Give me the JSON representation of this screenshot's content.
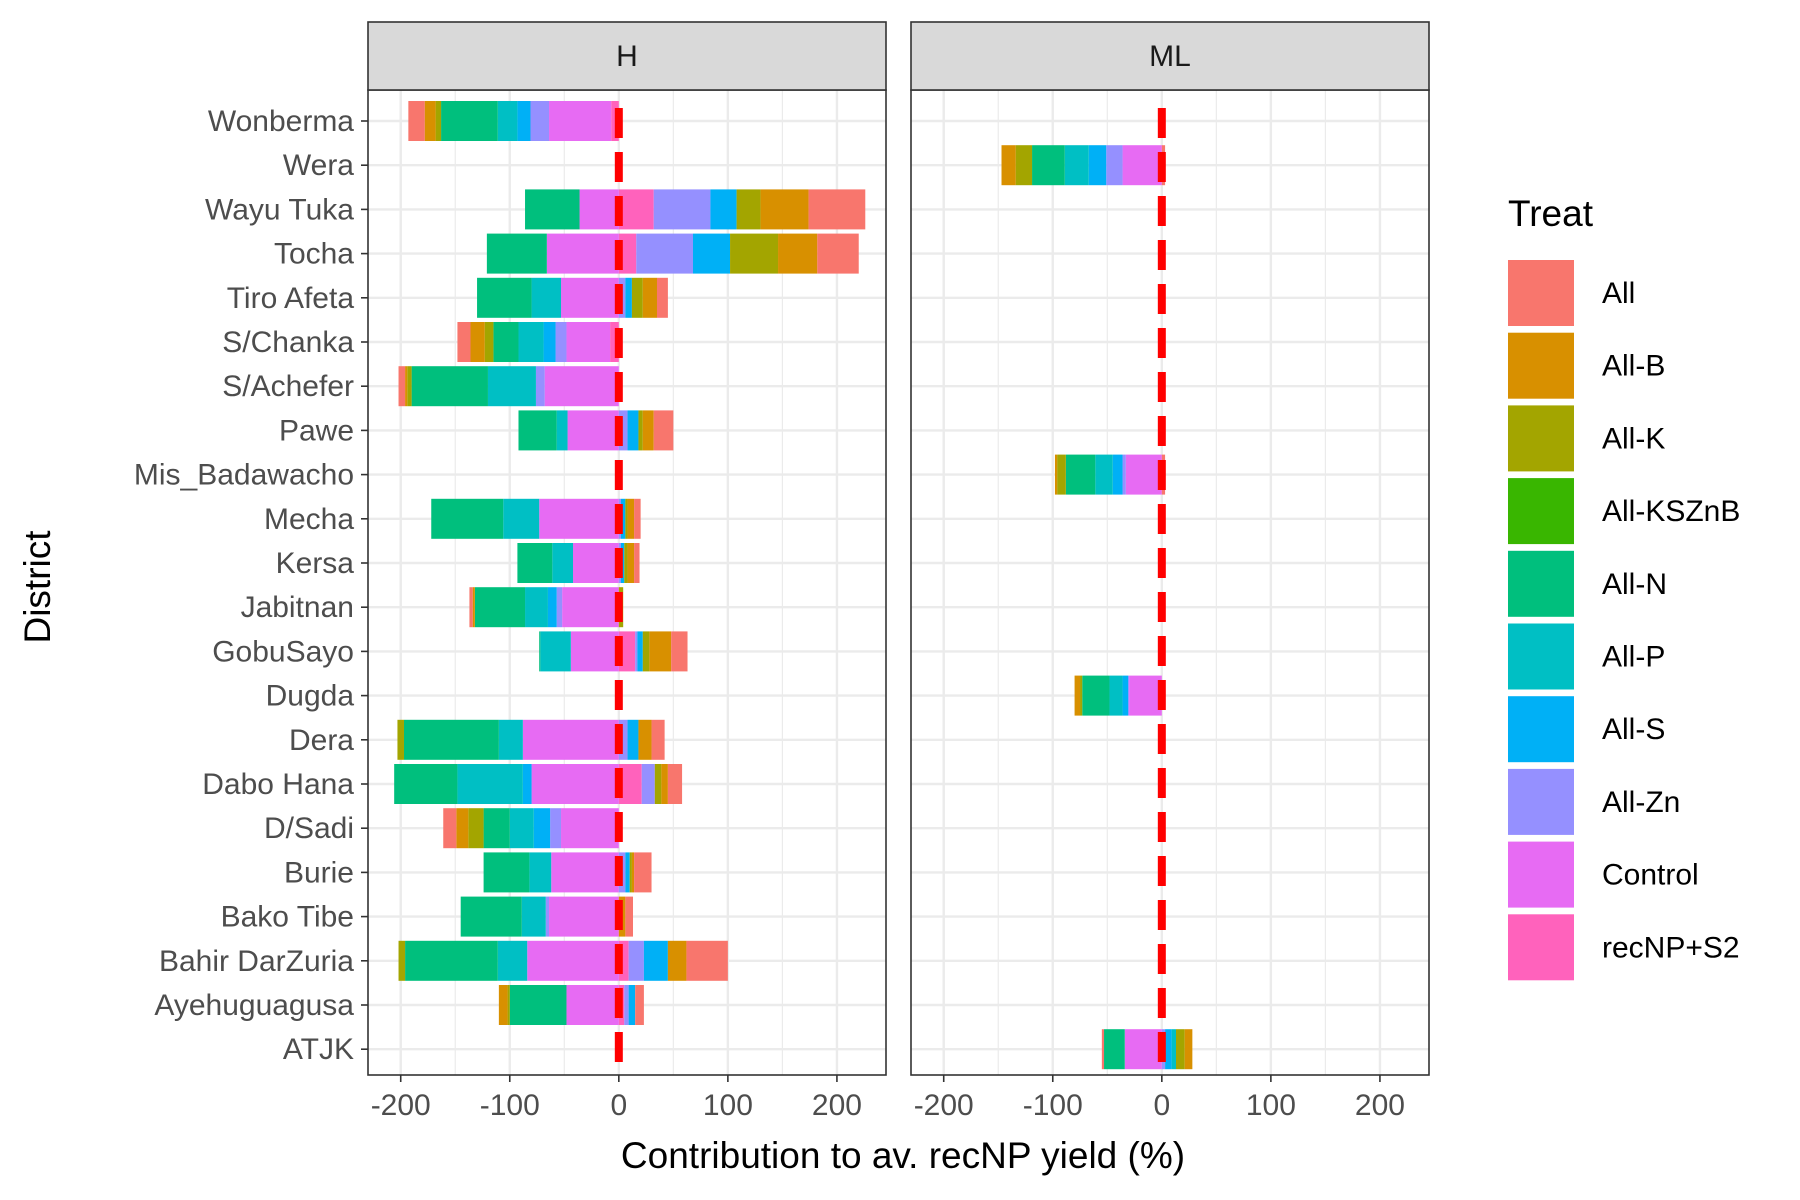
{
  "chart_data": {
    "type": "bar",
    "orientation": "horizontal",
    "stacked": "diverging",
    "xlabel": "Contribution to av. recNP yield (%)",
    "ylabel": "District",
    "xlim": [
      -230,
      245
    ],
    "xticks": [
      -200,
      -100,
      0,
      100,
      200
    ],
    "xtick_labels": [
      "-200",
      "-100",
      "0",
      "100",
      "200"
    ],
    "grid": true,
    "reference_line": {
      "x": 0,
      "style": "dashed",
      "color": "#FF0000"
    },
    "categories": [
      "Wonberma",
      "Wera",
      "Wayu Tuka",
      "Tocha",
      "Tiro Afeta",
      "S/Chanka",
      "S/Achefer",
      "Pawe",
      "Mis_Badawacho",
      "Mecha",
      "Kersa",
      "Jabitnan",
      "GobuSayo",
      "Dugda",
      "Dera",
      "Dabo Hana",
      "D/Sadi",
      "Burie",
      "Bako Tibe",
      "Bahir DarZuria",
      "Ayehuguagusa",
      "ATJK"
    ],
    "legend": {
      "title": "Treat",
      "position": "right",
      "entries": [
        {
          "name": "All",
          "color": "#F8766D"
        },
        {
          "name": "All-B",
          "color": "#D89000"
        },
        {
          "name": "All-K",
          "color": "#A3A500"
        },
        {
          "name": "All-KSZnB",
          "color": "#39B600"
        },
        {
          "name": "All-N",
          "color": "#00BF7D"
        },
        {
          "name": "All-P",
          "color": "#00BFC4"
        },
        {
          "name": "All-S",
          "color": "#00B0F6"
        },
        {
          "name": "All-Zn",
          "color": "#9590FF"
        },
        {
          "name": "Control",
          "color": "#E76BF3"
        },
        {
          "name": "recNP+S2",
          "color": "#FF62BC"
        }
      ]
    },
    "panels": [
      {
        "label": "H",
        "bars": [
          {
            "district": "Wonberma",
            "values": {
              "All": -15,
              "All-B": -10,
              "All-K": -5,
              "All-N": -52,
              "All-P": -18,
              "All-S": -12,
              "All-Zn": -17,
              "Control": -57,
              "recNP+S2": -7
            }
          },
          {
            "district": "Wera",
            "values": {}
          },
          {
            "district": "Wayu Tuka",
            "values": {
              "All": 52,
              "All-B": 44,
              "All-K": 22,
              "All-N": -50,
              "All-P": 0,
              "All-S": 24,
              "All-Zn": 52,
              "Control": -36,
              "recNP+S2": 32
            }
          },
          {
            "district": "Tocha",
            "values": {
              "All": 38,
              "All-B": 36,
              "All-K": 44,
              "All-N": -55,
              "All-P": 0,
              "All-S": 34,
              "All-Zn": 52,
              "Control": -66,
              "recNP+S2": 16
            }
          },
          {
            "district": "Tiro Afeta",
            "values": {
              "All": 10,
              "All-B": 13,
              "All-K": 10,
              "All-N": -50,
              "All-P": -27,
              "All-S": 6,
              "All-Zn": 6,
              "Control": -53,
              "recNP+S2": 0
            }
          },
          {
            "district": "S/Chanka",
            "values": {
              "All": -12,
              "All-B": -13,
              "All-K": -8,
              "All-N": -23,
              "All-P": -23,
              "All-S": -11,
              "All-Zn": -10,
              "Control": -40,
              "recNP+S2": -8
            }
          },
          {
            "district": "S/Achefer",
            "values": {
              "All": -6,
              "All-B": -2,
              "All-K": -4,
              "All-N": -70,
              "All-P": -44,
              "All-S": 0,
              "All-Zn": -8,
              "Control": -68,
              "recNP+S2": 0
            }
          },
          {
            "district": "Pawe",
            "values": {
              "All": 18,
              "All-B": 10,
              "All-K": 4,
              "All-N": -35,
              "All-P": -10,
              "All-S": 10,
              "All-Zn": 8,
              "Control": -47,
              "recNP+S2": 0
            }
          },
          {
            "district": "Mis_Badawacho",
            "values": {}
          },
          {
            "district": "Mecha",
            "values": {
              "All": 6,
              "All-B": 6,
              "All-K": 2,
              "All-N": -66,
              "All-P": -33,
              "All-S": 4,
              "All-Zn": 2,
              "Control": -73,
              "recNP+S2": 0
            }
          },
          {
            "district": "Kersa",
            "values": {
              "All": 5,
              "All-B": 6,
              "All-K": 3,
              "All-N": -32,
              "All-P": -19,
              "All-S": 3,
              "All-Zn": 2,
              "Control": -42,
              "recNP+S2": 0
            }
          },
          {
            "district": "Jabitnan",
            "values": {
              "All": -3,
              "All-B": -2,
              "All-K": 4,
              "All-N": -46,
              "All-P": -21,
              "All-S": -8,
              "All-Zn": -5,
              "Control": -52,
              "recNP+S2": 0
            }
          },
          {
            "district": "GobuSayo",
            "values": {
              "All": 15,
              "All-B": 20,
              "All-K": 6,
              "All-N": -1,
              "All-P": -28,
              "All-S": 5,
              "All-Zn": 2,
              "Control": -44,
              "recNP+S2": 15
            }
          },
          {
            "district": "Dugda",
            "values": {}
          },
          {
            "district": "Dera",
            "values": {
              "All": 12,
              "All-B": 12,
              "All-K": -6,
              "All-N": -87,
              "All-P": -22,
              "All-S": 10,
              "All-Zn": 8,
              "Control": -88,
              "recNP+S2": 0
            }
          },
          {
            "district": "Dabo Hana",
            "values": {
              "All": 13,
              "All-B": 6,
              "All-K": 6,
              "All-N": -58,
              "All-P": -60,
              "All-S": -8,
              "All-Zn": 12,
              "Control": -80,
              "recNP+S2": 21
            }
          },
          {
            "district": "D/Sadi",
            "values": {
              "All": -12,
              "All-B": -11,
              "All-K": -14,
              "All-N": -24,
              "All-P": -22,
              "All-S": -15,
              "All-Zn": -10,
              "Control": -53,
              "recNP+S2": 0
            }
          },
          {
            "district": "Burie",
            "values": {
              "All": 16,
              "All-B": 2,
              "All-K": 2,
              "All-N": -42,
              "All-P": -20,
              "All-S": 4,
              "All-Zn": 6,
              "Control": -62,
              "recNP+S2": 0
            }
          },
          {
            "district": "Bako Tibe",
            "values": {
              "All": 7,
              "All-B": 6,
              "All-K": 0,
              "All-N": -56,
              "All-P": -22,
              "All-S": 0,
              "All-Zn": -3,
              "Control": -64,
              "recNP+S2": 0
            }
          },
          {
            "district": "Bahir DarZuria",
            "values": {
              "All": 38,
              "All-B": 17,
              "All-K": -6,
              "All-N": -85,
              "All-P": -27,
              "All-S": 22,
              "All-Zn": 14,
              "Control": -84,
              "recNP+S2": 9
            }
          },
          {
            "district": "Ayehuguagusa",
            "values": {
              "All": 8,
              "All-B": -8,
              "All-K": -2,
              "All-N": -52,
              "All-P": 0,
              "All-S": 6,
              "All-Zn": 4,
              "Control": -48,
              "recNP+S2": 5
            }
          },
          {
            "district": "ATJK",
            "values": {}
          }
        ]
      },
      {
        "label": "ML",
        "bars": [
          {
            "district": "Wonberma",
            "values": {}
          },
          {
            "district": "Wera",
            "values": {
              "All": 3,
              "All-B": -13,
              "All-K": -15,
              "All-N": -30,
              "All-P": -22,
              "All-S": -16,
              "All-Zn": -15,
              "Control": -36,
              "recNP+S2": 0
            }
          },
          {
            "district": "Wayu Tuka",
            "values": {}
          },
          {
            "district": "Tocha",
            "values": {}
          },
          {
            "district": "Tiro Afeta",
            "values": {}
          },
          {
            "district": "S/Chanka",
            "values": {}
          },
          {
            "district": "S/Achefer",
            "values": {}
          },
          {
            "district": "Pawe",
            "values": {}
          },
          {
            "district": "Mis_Badawacho",
            "values": {
              "All": 3,
              "All-B": -2,
              "All-K": -8,
              "All-N": -27,
              "All-P": -16,
              "All-S": -9,
              "All-Zn": -3,
              "Control": -33,
              "recNP+S2": 0
            }
          },
          {
            "district": "Mecha",
            "values": {}
          },
          {
            "district": "Kersa",
            "values": {}
          },
          {
            "district": "Jabitnan",
            "values": {}
          },
          {
            "district": "GobuSayo",
            "values": {}
          },
          {
            "district": "Dugda",
            "values": {
              "All": 0,
              "All-B": -5,
              "All-K": -2,
              "All-N": -25,
              "All-P": -12,
              "All-S": -5,
              "All-Zn": -1,
              "Control": -30,
              "recNP+S2": 0
            }
          },
          {
            "district": "Dera",
            "values": {}
          },
          {
            "district": "Dabo Hana",
            "values": {}
          },
          {
            "district": "D/Sadi",
            "values": {}
          },
          {
            "district": "Burie",
            "values": {}
          },
          {
            "district": "Bako Tibe",
            "values": {}
          },
          {
            "district": "Bahir DarZuria",
            "values": {}
          },
          {
            "district": "Ayehuguagusa",
            "values": {}
          },
          {
            "district": "ATJK",
            "values": {
              "All": -2,
              "All-B": 7,
              "All-K": 8,
              "All-N": -19,
              "All-P": 4,
              "All-S": 6,
              "All-Zn": 3,
              "Control": -34,
              "recNP+S2": 0
            }
          }
        ]
      }
    ]
  }
}
